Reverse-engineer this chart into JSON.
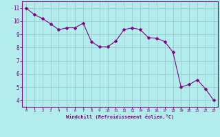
{
  "x": [
    0,
    1,
    2,
    3,
    4,
    5,
    6,
    7,
    8,
    9,
    10,
    11,
    12,
    13,
    14,
    15,
    16,
    17,
    18,
    19,
    20,
    21,
    22,
    23
  ],
  "y": [
    11.0,
    10.5,
    10.2,
    9.8,
    9.35,
    9.5,
    9.5,
    9.85,
    8.45,
    8.05,
    8.05,
    8.5,
    9.35,
    9.5,
    9.35,
    8.75,
    8.7,
    8.45,
    7.65,
    5.0,
    5.2,
    5.55,
    4.85,
    4.0
  ],
  "line_color": "#800080",
  "marker": "D",
  "marker_size": 2.5,
  "bg_color": "#b3ecec",
  "grid_color": "#99cccc",
  "xlabel": "Windchill (Refroidissement éolien,°C)",
  "xlim": [
    -0.5,
    23.5
  ],
  "ylim": [
    3.5,
    11.5
  ],
  "yticks": [
    4,
    5,
    6,
    7,
    8,
    9,
    10,
    11
  ],
  "xticks": [
    0,
    1,
    2,
    3,
    4,
    5,
    6,
    7,
    8,
    9,
    10,
    11,
    12,
    13,
    14,
    15,
    16,
    17,
    18,
    19,
    20,
    21,
    22,
    23
  ],
  "tick_color": "#800080",
  "label_color": "#800080",
  "spine_color": "#800080"
}
